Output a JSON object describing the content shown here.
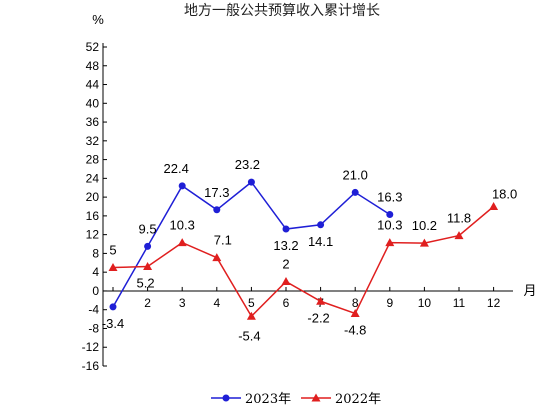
{
  "chart_data": {
    "type": "line",
    "title": "地方一般公共预算收入累计增长",
    "ylabel": "%",
    "xlabel": "月",
    "ylim": [
      -16,
      52
    ],
    "yticks": [
      -16,
      -12,
      -8,
      -4,
      0,
      4,
      8,
      12,
      16,
      20,
      24,
      28,
      32,
      36,
      40,
      44,
      48,
      52
    ],
    "categories": [
      "2",
      "3",
      "4",
      "5",
      "6",
      "7",
      "8",
      "9",
      "10",
      "11",
      "12"
    ],
    "series": [
      {
        "name": "2023年",
        "color": "#1f1fd6",
        "marker": "circle",
        "x": [
          1,
          2,
          3,
          4,
          5,
          6,
          7,
          8,
          9
        ],
        "values": [
          -3.4,
          9.5,
          22.4,
          17.3,
          23.2,
          13.2,
          14.1,
          21.0,
          16.3
        ],
        "labels": [
          "-3.4",
          "9.5",
          "22.4",
          "17.3",
          "23.2",
          "13.2",
          "14.1",
          "21.0",
          "16.3"
        ]
      },
      {
        "name": "2022年",
        "color": "#e01f1f",
        "marker": "triangle",
        "x": [
          1,
          2,
          3,
          4,
          5,
          6,
          7,
          8,
          9,
          10,
          11,
          12
        ],
        "values": [
          5,
          5.2,
          10.3,
          7.1,
          -5.4,
          2,
          -2.2,
          -4.8,
          10.3,
          10.2,
          11.8,
          18.0
        ],
        "labels": [
          "5",
          "5.2",
          "10.3",
          "7.1",
          "-5.4",
          "2",
          "-2.2",
          "-4.8",
          "10.3",
          "10.2",
          "11.8",
          "18.0"
        ]
      }
    ],
    "legend_position": "bottom-center"
  }
}
